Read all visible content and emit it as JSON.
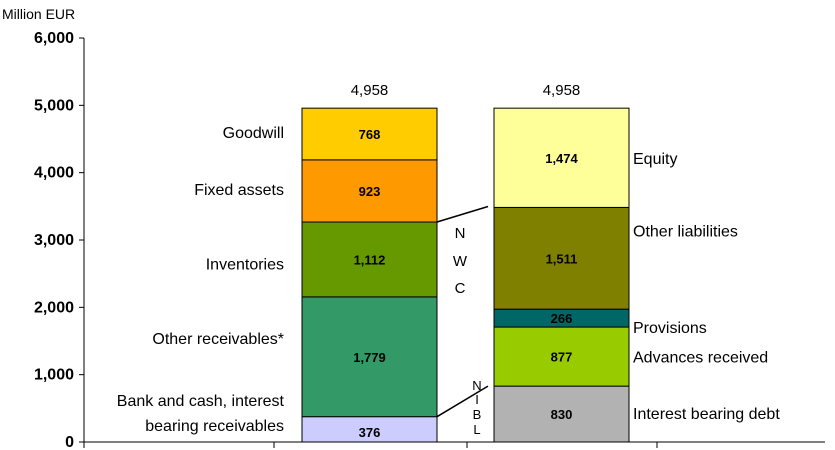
{
  "chart_data": {
    "type": "bar",
    "stacked": true,
    "unit_label": "Million EUR",
    "ylim": [
      0,
      6000
    ],
    "yticks": [
      "0",
      "1,000",
      "2,000",
      "3,000",
      "4,000",
      "5,000",
      "6,000"
    ],
    "ytick_values": [
      0,
      1000,
      2000,
      3000,
      4000,
      5000,
      6000
    ],
    "grid": false,
    "stacks": [
      {
        "total": 4958,
        "total_label": "4,958",
        "segments": [
          {
            "name": "Bank and cash, interest bearing receivables",
            "value": 376,
            "label": "376",
            "color": "#ccccff"
          },
          {
            "name": "Other receivables*",
            "value": 1779,
            "label": "1,779",
            "color": "#339966"
          },
          {
            "name": "Inventories",
            "value": 1112,
            "label": "1,112",
            "color": "#669900"
          },
          {
            "name": "Fixed assets",
            "value": 923,
            "label": "923",
            "color": "#ff9900"
          },
          {
            "name": "Goodwill",
            "value": 768,
            "label": "768",
            "color": "#ffcc00"
          }
        ]
      },
      {
        "total": 4958,
        "total_label": "4,958",
        "segments": [
          {
            "name": "Interest bearing debt",
            "value": 830,
            "label": "830",
            "color": "#b2b2b2"
          },
          {
            "name": "Advances received",
            "value": 877,
            "label": "877",
            "color": "#99cc00"
          },
          {
            "name": "Provisions",
            "value": 266,
            "label": "266",
            "color": "#006666"
          },
          {
            "name": "Other liabilities",
            "value": 1511,
            "label": "1,511",
            "color": "#808000"
          },
          {
            "name": "Equity",
            "value": 1474,
            "label": "1,474",
            "color": "#ffff99"
          }
        ]
      }
    ],
    "bracket_labels": {
      "nwc": [
        "N",
        "W",
        "C"
      ],
      "nibl": [
        "N",
        "I",
        "B",
        "L"
      ]
    }
  }
}
